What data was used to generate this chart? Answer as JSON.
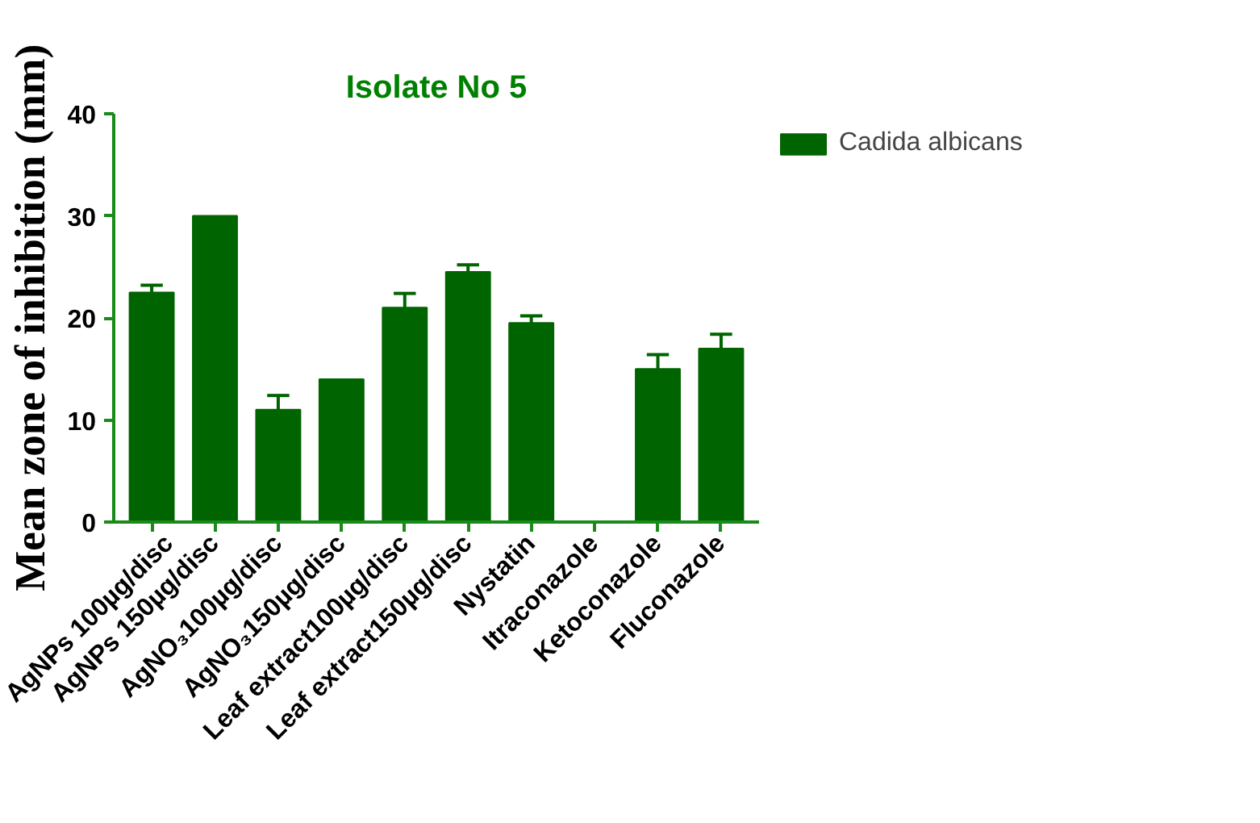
{
  "chart_data": {
    "type": "bar",
    "title": "Isolate No 5",
    "ylabel": "Mean zone of inhibition (mm)",
    "categories": [
      "AgNPs 100µg/disc",
      "AgNPs 150µg/disc",
      "AgNO₃100µg/disc",
      "AgNO₃150µg/disc",
      "Leaf extract100µg/disc",
      "Leaf extract150µg/disc",
      "Nystatin",
      "Itraconazole",
      "Ketoconazole",
      "Fluconazole"
    ],
    "series": [
      {
        "name": "Cadida albicans",
        "color": "#006400",
        "values": [
          22.5,
          30,
          11,
          14,
          21,
          24.5,
          19.5,
          0,
          15,
          17
        ],
        "errors": [
          0.7,
          null,
          1.4,
          null,
          1.4,
          0.7,
          0.7,
          null,
          1.4,
          1.4
        ]
      }
    ],
    "ylim": [
      0,
      40
    ],
    "yticks": [
      0,
      10,
      20,
      30,
      40
    ],
    "grid": false,
    "legend": "top right"
  }
}
